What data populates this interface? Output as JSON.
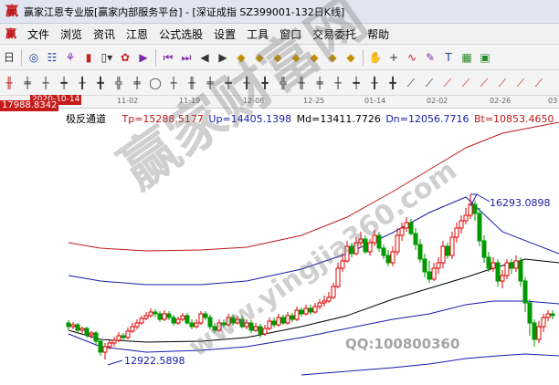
{
  "window": {
    "title": "赢家江恩专业版[赢家内部服务平台] - [深证成指   SZ399001-132日K线]"
  },
  "menu": [
    "文件",
    "浏览",
    "资讯",
    "江恩",
    "公式选股",
    "设置",
    "工具",
    "窗口",
    "交易委托",
    "帮助"
  ],
  "chart_header": {
    "price_tag": "17988.8342",
    "date_tag": "2020-10-14",
    "dates": [
      "11-02",
      "11-19",
      "12-08",
      "12-25",
      "01-14",
      "02-02",
      "02-26",
      "03"
    ],
    "indicator": "极反通道",
    "tp": "Tp=15288.5177",
    "up": "Up=14405.1398",
    "md": "Md=13411.7726",
    "dn": "Dn=12056.7716",
    "bt": "Bt=10853.4650"
  },
  "annotations": {
    "high": "16293.0898",
    "low": "12922.5898"
  },
  "watermark": {
    "brand": "赢家财富网",
    "url": "www.yingjia360.com",
    "qq": "QQ:100800360"
  },
  "colors": {
    "up": "#e00000",
    "down": "#009900",
    "red_band": "#c01818",
    "blue_band": "#1a1aa8",
    "mid": "#000000"
  },
  "chart_data": {
    "type": "candlestick",
    "overlay_series": [
      "Tp",
      "Up",
      "Md",
      "Dn",
      "Bt"
    ],
    "labeled_extremes": {
      "high": 16293.0898,
      "low": 12922.5898
    }
  }
}
